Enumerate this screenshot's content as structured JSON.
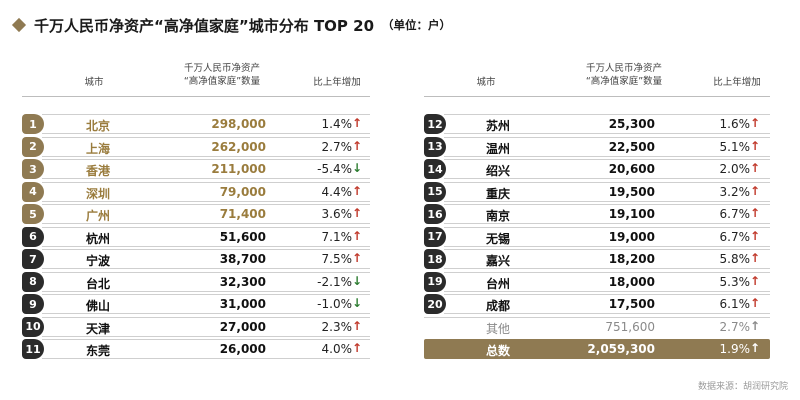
{
  "header": {
    "title": "千万人民币净资产“高净值家庭”城市分布 TOP 20",
    "unit": "（单位：户）"
  },
  "columns": {
    "city": "城市",
    "count_line1": "千万人民币净资产",
    "count_line2": "“高净值家庭”数量",
    "growth": "比上年增加"
  },
  "colors": {
    "gold": "#8f7a52",
    "dark": "#2b2b2b",
    "up": "#c0392b",
    "down": "#2e7d32"
  },
  "left_rows": [
    {
      "rank": "1",
      "city": "北京",
      "count": "298,000",
      "growth": "1.4%",
      "trend": "up",
      "style": "gold"
    },
    {
      "rank": "2",
      "city": "上海",
      "count": "262,000",
      "growth": "2.7%",
      "trend": "up",
      "style": "gold"
    },
    {
      "rank": "3",
      "city": "香港",
      "count": "211,000",
      "growth": "-5.4%",
      "trend": "down",
      "style": "gold"
    },
    {
      "rank": "4",
      "city": "深圳",
      "count": "79,000",
      "growth": "4.4%",
      "trend": "up",
      "style": "gold"
    },
    {
      "rank": "5",
      "city": "广州",
      "count": "71,400",
      "growth": "3.6%",
      "trend": "up",
      "style": "gold"
    },
    {
      "rank": "6",
      "city": "杭州",
      "count": "51,600",
      "growth": "7.1%",
      "trend": "up",
      "style": "dark"
    },
    {
      "rank": "7",
      "city": "宁波",
      "count": "38,700",
      "growth": "7.5%",
      "trend": "up",
      "style": "dark"
    },
    {
      "rank": "8",
      "city": "台北",
      "count": "32,300",
      "growth": "-2.1%",
      "trend": "down",
      "style": "dark"
    },
    {
      "rank": "9",
      "city": "佛山",
      "count": "31,000",
      "growth": "-1.0%",
      "trend": "down",
      "style": "dark"
    },
    {
      "rank": "10",
      "city": "天津",
      "count": "27,000",
      "growth": "2.3%",
      "trend": "up",
      "style": "dark"
    },
    {
      "rank": "11",
      "city": "东莞",
      "count": "26,000",
      "growth": "4.0%",
      "trend": "up",
      "style": "dark"
    }
  ],
  "right_rows": [
    {
      "rank": "12",
      "city": "苏州",
      "count": "25,300",
      "growth": "1.6%",
      "trend": "up",
      "style": "dark"
    },
    {
      "rank": "13",
      "city": "温州",
      "count": "22,500",
      "growth": "5.1%",
      "trend": "up",
      "style": "dark"
    },
    {
      "rank": "14",
      "city": "绍兴",
      "count": "20,600",
      "growth": "2.0%",
      "trend": "up",
      "style": "dark"
    },
    {
      "rank": "15",
      "city": "重庆",
      "count": "19,500",
      "growth": "3.2%",
      "trend": "up",
      "style": "dark"
    },
    {
      "rank": "16",
      "city": "南京",
      "count": "19,100",
      "growth": "6.7%",
      "trend": "up",
      "style": "dark"
    },
    {
      "rank": "17",
      "city": "无锡",
      "count": "19,000",
      "growth": "6.7%",
      "trend": "up",
      "style": "dark"
    },
    {
      "rank": "18",
      "city": "嘉兴",
      "count": "18,200",
      "growth": "5.8%",
      "trend": "up",
      "style": "dark"
    },
    {
      "rank": "19",
      "city": "台州",
      "count": "18,000",
      "growth": "5.3%",
      "trend": "up",
      "style": "dark"
    },
    {
      "rank": "20",
      "city": "成都",
      "count": "17,500",
      "growth": "6.1%",
      "trend": "up",
      "style": "dark"
    }
  ],
  "other_row": {
    "city": "其他",
    "count": "751,600",
    "growth": "2.7%",
    "trend": "up"
  },
  "total_row": {
    "city": "总数",
    "count": "2,059,300",
    "growth": "1.9%",
    "trend": "up"
  },
  "source": "数据来源：胡润研究院"
}
